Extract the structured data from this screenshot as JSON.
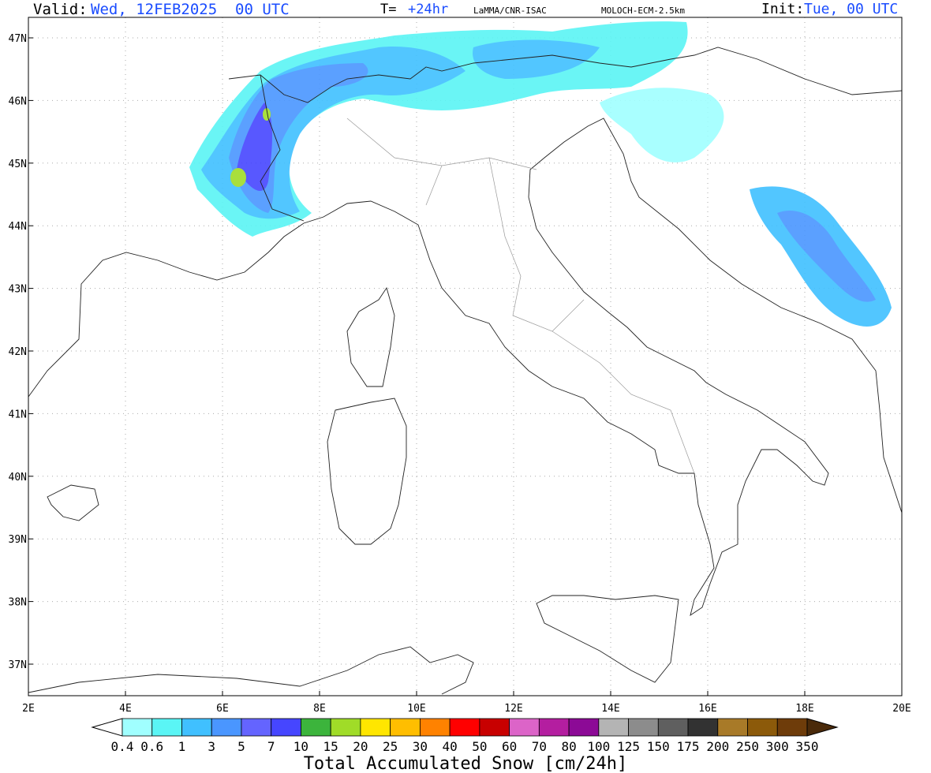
{
  "header": {
    "valid_label": "Valid:",
    "valid_value": "Wed, 12FEB2025  00 UTC",
    "t_label": "T=",
    "t_value": "+24hr",
    "source": "LaMMA/CNR-ISAC",
    "model": "MOLOCH-ECM-2.5km",
    "init_label": "Init:",
    "init_value": "Tue, 00 UTC"
  },
  "map": {
    "lat_labels": [
      "47N",
      "46N",
      "45N",
      "44N",
      "43N",
      "42N",
      "41N",
      "40N",
      "39N",
      "38N",
      "37N"
    ],
    "lon_labels": [
      "2E",
      "4E",
      "6E",
      "8E",
      "10E",
      "12E",
      "14E",
      "16E",
      "18E",
      "20E"
    ]
  },
  "legend": {
    "title": "Total Accumulated Snow [cm/24h]",
    "levels": [
      0.4,
      0.6,
      1,
      3,
      5,
      7,
      10,
      15,
      20,
      25,
      30,
      40,
      50,
      60,
      70,
      80,
      100,
      125,
      150,
      175,
      200,
      250,
      300,
      350
    ],
    "under_color": "#ffffff",
    "colors": [
      "#a0ffff",
      "#5af5f5",
      "#40c0ff",
      "#4a96ff",
      "#6464ff",
      "#4646ff",
      "#3cb43c",
      "#a0dc28",
      "#ffe600",
      "#ffbe00",
      "#ff8200",
      "#ff0000",
      "#c80000",
      "#dc64c8",
      "#b41ea0",
      "#8c0a96",
      "#b4b4b4",
      "#8c8c8c",
      "#5f5f5f",
      "#323232",
      "#a87a28",
      "#8c5a0a",
      "#6e3c0a"
    ],
    "over_color": "#4a2a0a"
  }
}
